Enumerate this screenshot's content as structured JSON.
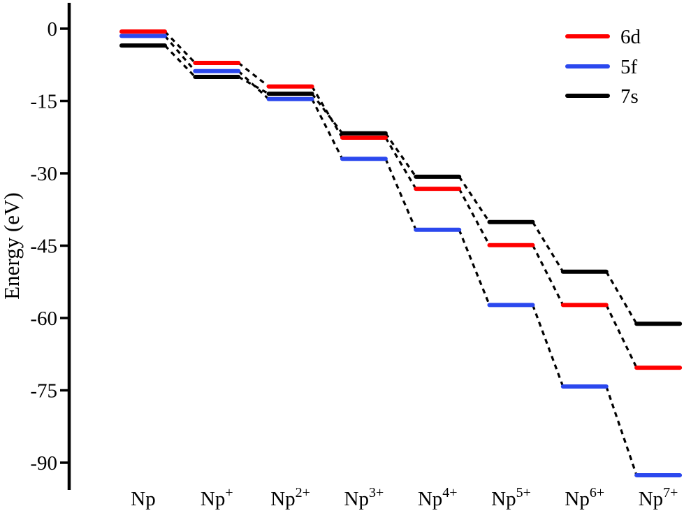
{
  "chart_data": {
    "type": "line",
    "variant": "energy-level-diagram",
    "title": "",
    "xlabel": "",
    "ylabel": "Energy (eV)",
    "categories": [
      {
        "base": "Np",
        "sup": ""
      },
      {
        "base": "Np",
        "sup": "+"
      },
      {
        "base": "Np",
        "sup": "2+"
      },
      {
        "base": "Np",
        "sup": "3+"
      },
      {
        "base": "Np",
        "sup": "4+"
      },
      {
        "base": "Np",
        "sup": "5+"
      },
      {
        "base": "Np",
        "sup": "6+"
      },
      {
        "base": "Np",
        "sup": "7+"
      }
    ],
    "series": [
      {
        "name": "6d",
        "color": "#ff0000",
        "values": [
          -0.6,
          -7.1,
          -12.0,
          -22.6,
          -33.2,
          -44.9,
          -57.3,
          -70.3
        ]
      },
      {
        "name": "5f",
        "color": "#2b48ee",
        "values": [
          -1.5,
          -8.8,
          -14.6,
          -27.0,
          -41.7,
          -57.3,
          -74.2,
          -92.6
        ]
      },
      {
        "name": "7s",
        "color": "#000000",
        "values": [
          -3.5,
          -10.0,
          -13.5,
          -21.7,
          -30.7,
          -40.1,
          -50.4,
          -61.2
        ]
      }
    ],
    "y_ticks": [
      0,
      -15,
      -30,
      -45,
      -60,
      -75,
      -90
    ],
    "ylim": [
      -97,
      5.5
    ],
    "grid": false,
    "legend_position": "top-right",
    "connector_style": "dashed",
    "axis_color": "#000000"
  }
}
